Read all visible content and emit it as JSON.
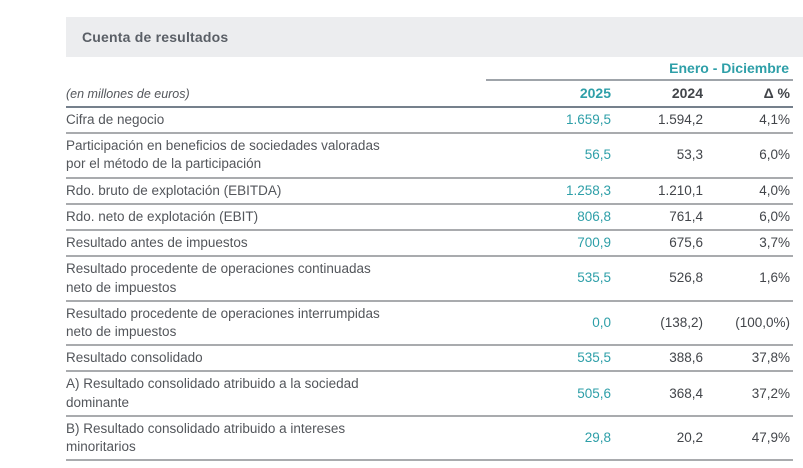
{
  "page": {
    "title": "Cuenta de resultados"
  },
  "table": {
    "unit_note": "(en millones de euros)",
    "period_header": "Enero - Diciembre",
    "columns": [
      "2025",
      "2024",
      "Δ %"
    ],
    "rows": [
      {
        "label": "Cifra de negocio",
        "y2025": "1.659,5",
        "y2024": "1.594,2",
        "delta": "4,1%"
      },
      {
        "label": "Participación en beneficios de sociedades valoradas\npor el método de la participación",
        "y2025": "56,5",
        "y2024": "53,3",
        "delta": "6,0%"
      },
      {
        "label": "Rdo. bruto de explotación (EBITDA)",
        "y2025": "1.258,3",
        "y2024": "1.210,1",
        "delta": "4,0%"
      },
      {
        "label": "Rdo. neto de explotación (EBIT)",
        "y2025": "806,8",
        "y2024": "761,4",
        "delta": "6,0%"
      },
      {
        "label": "Resultado antes de impuestos",
        "y2025": "700,9",
        "y2024": "675,6",
        "delta": "3,7%"
      },
      {
        "label": "Resultado procedente de operaciones continuadas\nneto de impuestos",
        "y2025": "535,5",
        "y2024": "526,8",
        "delta": "1,6%"
      },
      {
        "label": "Resultado procedente de operaciones interrumpidas\nneto de impuestos",
        "y2025": "0,0",
        "y2024": "(138,2)",
        "delta": "(100,0%)"
      },
      {
        "label": "Resultado consolidado",
        "y2025": "535,5",
        "y2024": "388,6",
        "delta": "37,8%"
      },
      {
        "label": "A) Resultado consolidado atribuido a la sociedad\ndominante",
        "y2025": "505,6",
        "y2024": "368,4",
        "delta": "37,2%"
      },
      {
        "label": "B) Resultado consolidado atribuido a intereses\nminoritarios",
        "y2025": "29,8",
        "y2024": "20,2",
        "delta": "47,9%"
      }
    ]
  },
  "colors": {
    "teal": "#2E9FA8",
    "dark-value": "#42454A",
    "label-text": "#53565B",
    "topbar-bg": "#ECEDEF",
    "topbar-text": "#5A5F66",
    "row-line": "#A9ABAE",
    "header-line": "#75808C",
    "period-line": "#9FA4AA"
  }
}
